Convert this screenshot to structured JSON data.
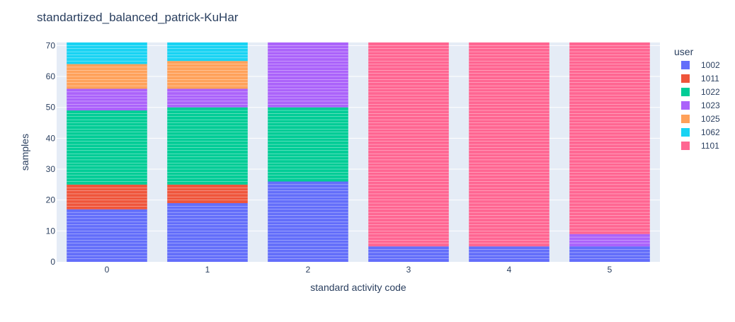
{
  "chart_data": {
    "type": "bar",
    "stacked": true,
    "title": "standartized_balanced_patrick-KuHar",
    "xlabel": "standard activity code",
    "ylabel": "samples",
    "categories": [
      "0",
      "1",
      "2",
      "3",
      "4",
      "5"
    ],
    "ylim": [
      0,
      71
    ],
    "yticks": [
      0,
      10,
      20,
      30,
      40,
      50,
      60,
      70
    ],
    "grid": true,
    "legend_title": "user",
    "legend_position": "right",
    "background_color": "#E5ECF6",
    "series": [
      {
        "name": "1002",
        "color": "#636EFA",
        "values": [
          17,
          19,
          26,
          5,
          5,
          5
        ]
      },
      {
        "name": "1011",
        "color": "#EF553B",
        "values": [
          8,
          6,
          0,
          0,
          0,
          0
        ]
      },
      {
        "name": "1022",
        "color": "#00CC96",
        "values": [
          24,
          25,
          24,
          0,
          0,
          0
        ]
      },
      {
        "name": "1023",
        "color": "#AB63FA",
        "values": [
          7,
          6,
          21,
          0,
          0,
          4
        ]
      },
      {
        "name": "1025",
        "color": "#FFA15A",
        "values": [
          8,
          9,
          0,
          0,
          0,
          0
        ]
      },
      {
        "name": "1062",
        "color": "#19D3F3",
        "values": [
          7,
          6,
          0,
          0,
          0,
          0
        ]
      },
      {
        "name": "1101",
        "color": "#FF6692",
        "values": [
          0,
          0,
          0,
          66,
          66,
          62
        ]
      }
    ]
  }
}
